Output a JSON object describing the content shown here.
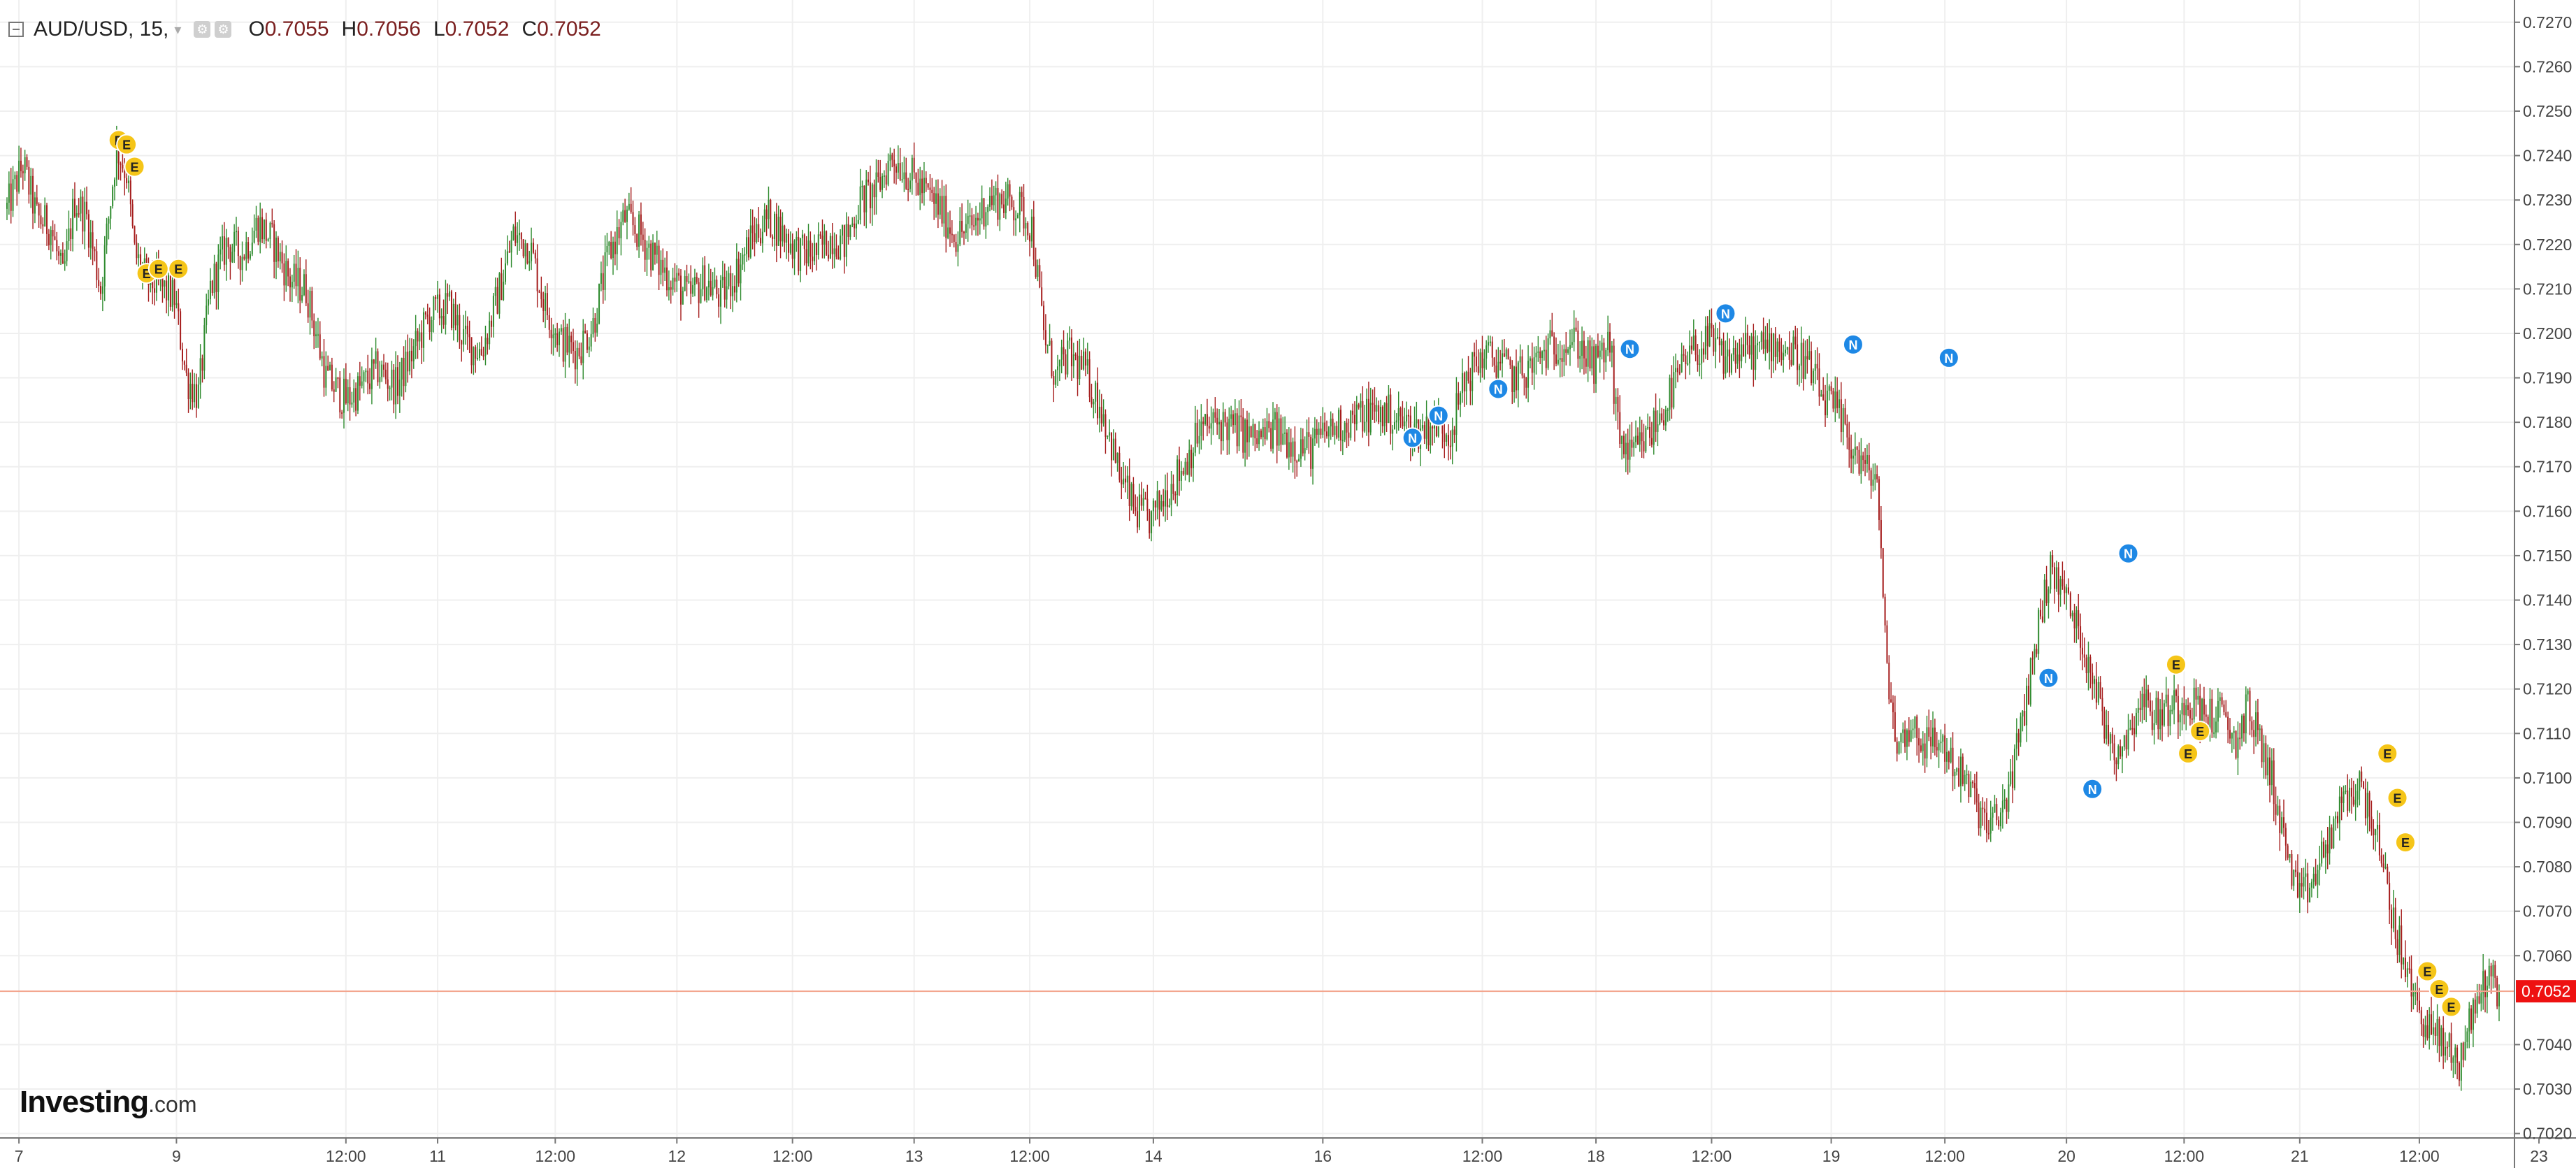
{
  "header": {
    "symbol": "AUD/USD, 15,",
    "caret": "▾",
    "open_label": "O",
    "open": "0.7055",
    "high_label": "H",
    "high": "0.7056",
    "low_label": "L",
    "low": "0.7052",
    "close_label": "C",
    "close": "0.7052"
  },
  "logo": {
    "brand": "Investing",
    "domain": ".com"
  },
  "colors": {
    "up": "#2e8b2e",
    "down": "#a51c1c",
    "grid": "#efefef",
    "price_line": "#f3a68f",
    "price_tag": "#ee1111",
    "marker_e": "#f5c518",
    "marker_n": "#1e88e5",
    "axis_text": "#444444"
  },
  "chart_data": {
    "type": "candlestick",
    "interval": "15",
    "y_ticks": [
      "0.7270",
      "0.7260",
      "0.7250",
      "0.7240",
      "0.7230",
      "0.7220",
      "0.7210",
      "0.7200",
      "0.7190",
      "0.7180",
      "0.7170",
      "0.7160",
      "0.7150",
      "0.7140",
      "0.7130",
      "0.7120",
      "0.7110",
      "0.7100",
      "0.7090",
      "0.7080",
      "0.7070",
      "0.7060",
      "0.7040",
      "0.7030",
      "0.7020"
    ],
    "ylim": [
      0.7019,
      0.7275
    ],
    "x_ticks": [
      "7",
      "9",
      "12:00",
      "11",
      "12:00",
      "12",
      "12:00",
      "13",
      "12:00",
      "14",
      "16",
      "12:00",
      "18",
      "12:00",
      "19",
      "12:00",
      "20",
      "12:00",
      "21",
      "12:00",
      "23"
    ],
    "x_tick_index": [
      6,
      85,
      170,
      216,
      275,
      336,
      394,
      455,
      513,
      575,
      660,
      740,
      797,
      855,
      915,
      972,
      1033,
      1092,
      1150,
      1210,
      1270
    ],
    "last_price": "0.7052",
    "last_price_value": 0.7052,
    "series": [
      {
        "anchors": [
          [
            0,
            0.7228
          ],
          [
            8,
            0.7238
          ],
          [
            15,
            0.7226
          ],
          [
            22,
            0.7224
          ],
          [
            28,
            0.7212
          ],
          [
            34,
            0.723
          ],
          [
            40,
            0.7226
          ],
          [
            47,
            0.721
          ],
          [
            55,
            0.7242
          ],
          [
            60,
            0.7236
          ],
          [
            64,
            0.7218
          ],
          [
            70,
            0.7212
          ],
          [
            78,
            0.721
          ],
          [
            84,
            0.7208
          ],
          [
            90,
            0.719
          ],
          [
            96,
            0.7186
          ],
          [
            102,
            0.721
          ],
          [
            110,
            0.722
          ],
          [
            118,
            0.7218
          ],
          [
            126,
            0.7225
          ],
          [
            134,
            0.722
          ],
          [
            142,
            0.7212
          ],
          [
            150,
            0.721
          ],
          [
            160,
            0.719
          ],
          [
            170,
            0.7185
          ],
          [
            178,
            0.7188
          ],
          [
            186,
            0.7192
          ],
          [
            195,
            0.7188
          ],
          [
            204,
            0.7196
          ],
          [
            212,
            0.7204
          ],
          [
            222,
            0.7206
          ],
          [
            230,
            0.7198
          ],
          [
            238,
            0.7196
          ],
          [
            246,
            0.7208
          ],
          [
            254,
            0.7222
          ],
          [
            262,
            0.722
          ],
          [
            270,
            0.7206
          ],
          [
            278,
            0.7198
          ],
          [
            286,
            0.7196
          ],
          [
            294,
            0.7202
          ],
          [
            302,
            0.7218
          ],
          [
            310,
            0.7226
          ],
          [
            318,
            0.7222
          ],
          [
            326,
            0.7216
          ],
          [
            334,
            0.7212
          ],
          [
            342,
            0.7208
          ],
          [
            350,
            0.7212
          ],
          [
            358,
            0.7208
          ],
          [
            366,
            0.7214
          ],
          [
            374,
            0.7222
          ],
          [
            382,
            0.7226
          ],
          [
            390,
            0.7222
          ],
          [
            398,
            0.7218
          ],
          [
            406,
            0.7218
          ],
          [
            414,
            0.7222
          ],
          [
            420,
            0.722
          ],
          [
            428,
            0.723
          ],
          [
            436,
            0.7232
          ],
          [
            444,
            0.724
          ],
          [
            452,
            0.7236
          ],
          [
            460,
            0.7232
          ],
          [
            468,
            0.7228
          ],
          [
            476,
            0.7222
          ],
          [
            484,
            0.7224
          ],
          [
            492,
            0.723
          ],
          [
            500,
            0.723
          ],
          [
            508,
            0.7228
          ],
          [
            514,
            0.7224
          ],
          [
            520,
            0.72
          ],
          [
            526,
            0.719
          ],
          [
            532,
            0.7195
          ],
          [
            540,
            0.7192
          ],
          [
            550,
            0.7182
          ],
          [
            558,
            0.7168
          ],
          [
            566,
            0.716
          ],
          [
            574,
            0.7158
          ],
          [
            582,
            0.7165
          ],
          [
            590,
            0.717
          ],
          [
            598,
            0.7178
          ],
          [
            608,
            0.718
          ],
          [
            618,
            0.7178
          ],
          [
            626,
            0.7176
          ],
          [
            636,
            0.7178
          ],
          [
            646,
            0.7175
          ],
          [
            654,
            0.7174
          ],
          [
            662,
            0.7178
          ],
          [
            672,
            0.718
          ],
          [
            682,
            0.7182
          ],
          [
            692,
            0.7182
          ],
          [
            700,
            0.718
          ],
          [
            708,
            0.7178
          ],
          [
            716,
            0.718
          ],
          [
            724,
            0.7178
          ],
          [
            732,
            0.719
          ],
          [
            740,
            0.7195
          ],
          [
            748,
            0.7194
          ],
          [
            756,
            0.719
          ],
          [
            764,
            0.7192
          ],
          [
            772,
            0.7196
          ],
          [
            780,
            0.7198
          ],
          [
            788,
            0.7198
          ],
          [
            796,
            0.7192
          ],
          [
            804,
            0.7198
          ],
          [
            808,
            0.7178
          ],
          [
            814,
            0.7172
          ],
          [
            822,
            0.7176
          ],
          [
            830,
            0.7182
          ],
          [
            838,
            0.719
          ],
          [
            846,
            0.7196
          ],
          [
            854,
            0.7198
          ],
          [
            862,
            0.7194
          ],
          [
            870,
            0.7196
          ],
          [
            878,
            0.7196
          ],
          [
            886,
            0.7198
          ],
          [
            894,
            0.7196
          ],
          [
            902,
            0.7194
          ],
          [
            910,
            0.7186
          ],
          [
            918,
            0.7182
          ],
          [
            926,
            0.7174
          ],
          [
            934,
            0.7168
          ],
          [
            938,
            0.7168
          ],
          [
            942,
            0.713
          ],
          [
            948,
            0.7106
          ],
          [
            954,
            0.7112
          ],
          [
            962,
            0.7108
          ],
          [
            970,
            0.7108
          ],
          [
            978,
            0.7102
          ],
          [
            986,
            0.7096
          ],
          [
            994,
            0.7088
          ],
          [
            1002,
            0.7094
          ],
          [
            1010,
            0.711
          ],
          [
            1018,
            0.7132
          ],
          [
            1024,
            0.7146
          ],
          [
            1030,
            0.7144
          ],
          [
            1038,
            0.7134
          ],
          [
            1046,
            0.7124
          ],
          [
            1052,
            0.7112
          ],
          [
            1058,
            0.7106
          ],
          [
            1064,
            0.711
          ],
          [
            1070,
            0.7118
          ],
          [
            1078,
            0.7114
          ],
          [
            1086,
            0.7116
          ],
          [
            1094,
            0.7118
          ],
          [
            1102,
            0.7114
          ],
          [
            1110,
            0.7114
          ],
          [
            1118,
            0.7108
          ],
          [
            1124,
            0.7116
          ],
          [
            1130,
            0.7108
          ],
          [
            1136,
            0.71
          ],
          [
            1142,
            0.7086
          ],
          [
            1150,
            0.7072
          ],
          [
            1158,
            0.7078
          ],
          [
            1166,
            0.7088
          ],
          [
            1174,
            0.7096
          ],
          [
            1180,
            0.7098
          ],
          [
            1186,
            0.7092
          ],
          [
            1192,
            0.7078
          ],
          [
            1198,
            0.7066
          ],
          [
            1206,
            0.7052
          ],
          [
            1214,
            0.7044
          ],
          [
            1222,
            0.704
          ],
          [
            1230,
            0.7036
          ],
          [
            1236,
            0.7046
          ],
          [
            1244,
            0.7056
          ],
          [
            1250,
            0.7052
          ]
        ]
      }
    ],
    "events": [
      {
        "label": "E",
        "index": 56,
        "price": 0.72435
      },
      {
        "label": "E",
        "index": 60,
        "price": 0.72425
      },
      {
        "label": "E",
        "index": 64,
        "price": 0.72375
      },
      {
        "label": "E",
        "index": 70,
        "price": 0.72135
      },
      {
        "label": "E",
        "index": 76,
        "price": 0.72145
      },
      {
        "label": "E",
        "index": 86,
        "price": 0.72145
      },
      {
        "label": "N",
        "index": 705,
        "price": 0.71765
      },
      {
        "label": "N",
        "index": 718,
        "price": 0.71815
      },
      {
        "label": "N",
        "index": 748,
        "price": 0.71875
      },
      {
        "label": "N",
        "index": 814,
        "price": 0.71965
      },
      {
        "label": "N",
        "index": 862,
        "price": 0.72045
      },
      {
        "label": "N",
        "index": 926,
        "price": 0.71975
      },
      {
        "label": "N",
        "index": 974,
        "price": 0.71945
      },
      {
        "label": "N",
        "index": 1024,
        "price": 0.71225
      },
      {
        "label": "N",
        "index": 1046,
        "price": 0.70975
      },
      {
        "label": "N",
        "index": 1064,
        "price": 0.71505
      },
      {
        "label": "E",
        "index": 1088,
        "price": 0.71255
      },
      {
        "label": "E",
        "index": 1094,
        "price": 0.71055
      },
      {
        "label": "E",
        "index": 1100,
        "price": 0.71105
      },
      {
        "label": "E",
        "index": 1194,
        "price": 0.71055
      },
      {
        "label": "E",
        "index": 1199,
        "price": 0.70955
      },
      {
        "label": "E",
        "index": 1203,
        "price": 0.70855
      },
      {
        "label": "E",
        "index": 1214,
        "price": 0.70565
      },
      {
        "label": "E",
        "index": 1220,
        "price": 0.70525
      },
      {
        "label": "E",
        "index": 1226,
        "price": 0.70485
      }
    ]
  }
}
